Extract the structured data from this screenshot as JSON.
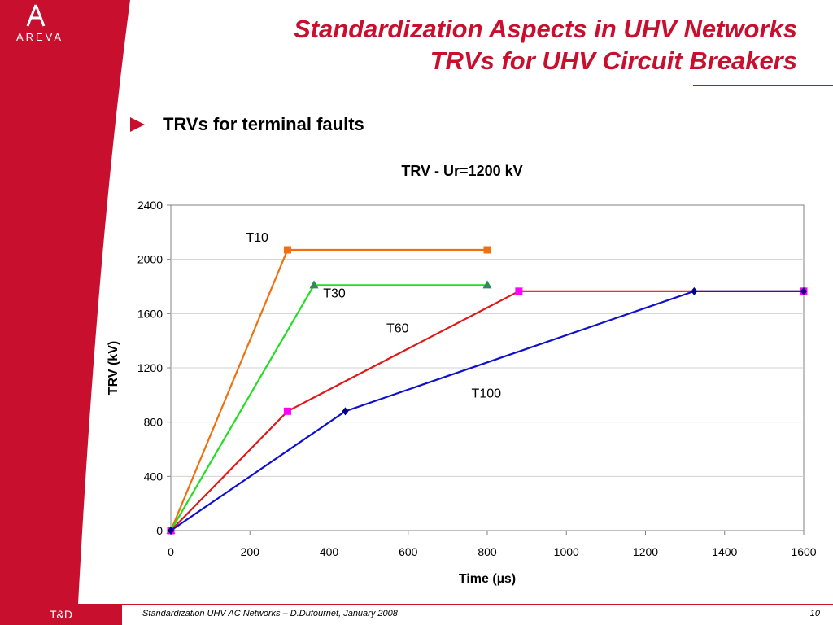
{
  "header": {
    "title_line1": "Standardization Aspects in UHV Networks",
    "title_line2": "TRVs for UHV Circuit Breakers"
  },
  "logo": {
    "brand": "AREVA"
  },
  "bullet": {
    "text": "TRVs for terminal faults"
  },
  "footer": {
    "section": "T&D",
    "text": "Standardization UHV AC Networks – D.Dufournet, January 2008",
    "page": "10"
  },
  "colors": {
    "brand_red": "#c8102e",
    "T10": "#f07010",
    "T30": "#22dd22",
    "T60": "#e01818",
    "T100": "#1010cc",
    "T30_marker": "#2e8b57",
    "T60_marker": "#ff00ff",
    "T100_marker": "#000080"
  },
  "chart_data": {
    "type": "line",
    "title": "TRV - Ur=1200 kV",
    "xlabel": "Time (µs)",
    "ylabel": "TRV (kV)",
    "xlim": [
      0,
      1600
    ],
    "ylim": [
      0,
      2400
    ],
    "xticks": [
      0,
      200,
      400,
      600,
      800,
      1000,
      1200,
      1400,
      1600
    ],
    "yticks": [
      0,
      400,
      800,
      1200,
      1600,
      2000,
      2400
    ],
    "grid": true,
    "legend": "none",
    "series": [
      {
        "name": "T10",
        "label_x": 190,
        "label_y": 2130,
        "marker": "square",
        "points": [
          [
            0,
            0
          ],
          [
            295,
            2070
          ],
          [
            800,
            2070
          ]
        ]
      },
      {
        "name": "T30",
        "label_x": 385,
        "label_y": 1720,
        "marker": "triangle",
        "points": [
          [
            0,
            0
          ],
          [
            362,
            1810
          ],
          [
            800,
            1810
          ]
        ]
      },
      {
        "name": "T60",
        "label_x": 545,
        "label_y": 1460,
        "marker": "square",
        "points": [
          [
            0,
            0
          ],
          [
            295,
            880
          ],
          [
            880,
            1765
          ],
          [
            1600,
            1765
          ]
        ]
      },
      {
        "name": "T100",
        "label_x": 760,
        "label_y": 980,
        "marker": "diamond",
        "points": [
          [
            0,
            0
          ],
          [
            441,
            880
          ],
          [
            1323,
            1765
          ],
          [
            1600,
            1765
          ]
        ]
      }
    ]
  }
}
